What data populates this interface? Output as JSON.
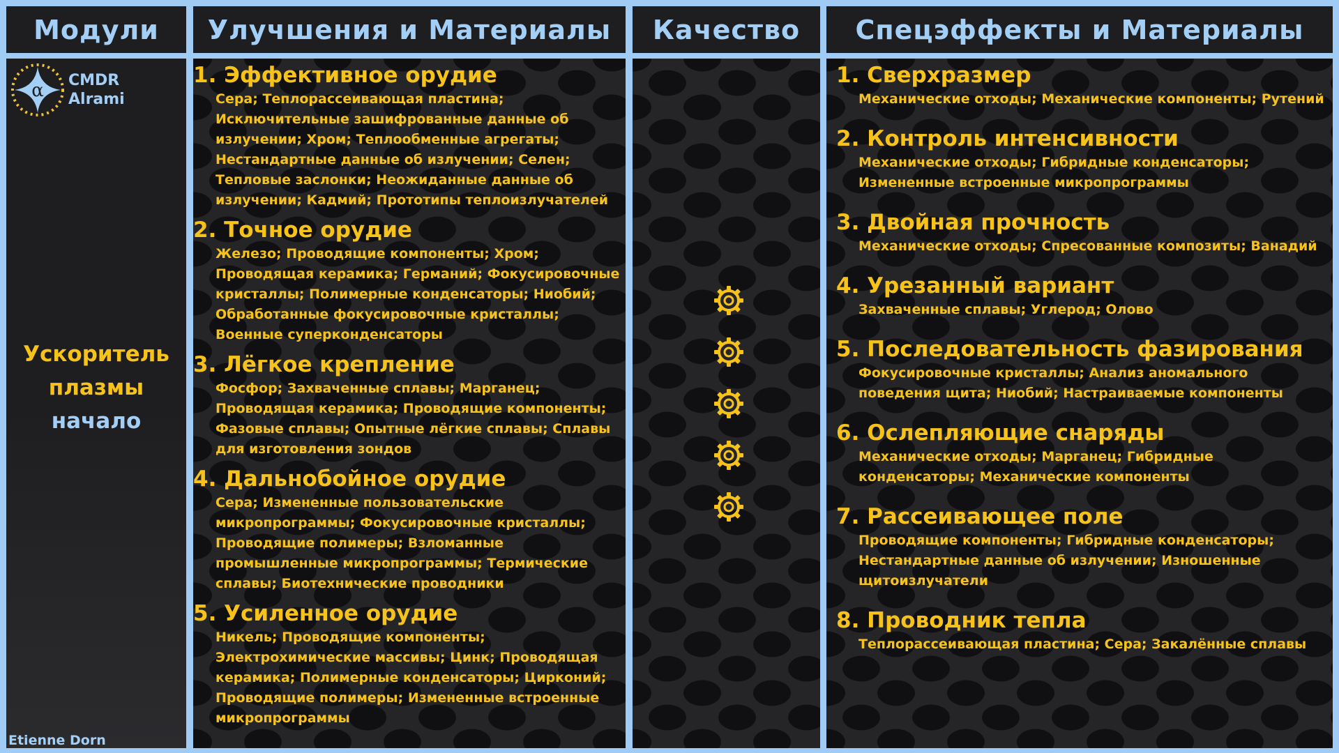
{
  "headers": {
    "modules": "Модули",
    "upgrades": "Улучшения и Материалы",
    "quality": "Качество",
    "effects": "Спецэффекты и Материалы"
  },
  "logo": {
    "line1": "CMDR",
    "line2": "Alrami",
    "symbol": "α"
  },
  "module": {
    "line1": "Ускоритель",
    "line2": "плазмы",
    "line3": "начало"
  },
  "author": "Etienne Dorn",
  "quality_grades": 5,
  "colors": {
    "accent": "#f7c31b",
    "header": "#a3cff7",
    "border": "#9fcbf4",
    "panel": "#1e1e20"
  },
  "upgrades": [
    {
      "title": "1. Эффективное орудие",
      "materials": "Сера; Теплорассеивающая пластина; Исключительные зашифрованные данные об излучении; Хром; Теплообменные агрегаты; Нестандартные данные об излучении; Селен; Тепловые заслонки; Неожиданные данные об излучении; Кадмий; Прототипы теплоизлучателей"
    },
    {
      "title": "2. Точное орудие",
      "materials": "Железо; Проводящие компоненты; Хром; Проводящая керамика; Германий; Фокусировочные кристаллы; Полимерные конденсаторы; Ниобий; Обработанные фокусировочные кристаллы; Военные суперконденсаторы"
    },
    {
      "title": "3. Лёгкое крепление",
      "materials": "Фосфор; Захваченные сплавы; Марганец; Проводящая керамика; Проводящие компоненты; Фазовые сплавы; Опытные лёгкие сплавы; Сплавы для изготовления зондов"
    },
    {
      "title": "4. Дальнобойное орудие",
      "materials": "Сера; Измененные пользовательские микропрограммы; Фокусировочные кристаллы; Проводящие полимеры; Взломанные промышленные микропрограммы; Термические сплавы; Биотехнические проводники"
    },
    {
      "title": "5. Усиленное орудие",
      "materials": "Никель; Проводящие компоненты; Электрохимические массивы; Цинк; Проводящая керамика; Полимерные конденсаторы; Цирконий; Проводящие полимеры; Измененные встроенные микропрограммы"
    }
  ],
  "effects": [
    {
      "title": "1. Сверхразмер",
      "materials": "Механические отходы; Механические компоненты; Рутений"
    },
    {
      "title": "2. Контроль интенсивности",
      "materials": "Механические отходы; Гибридные конденсаторы; Измененные встроенные микропрограммы"
    },
    {
      "title": "3. Двойная прочность",
      "materials": "Механические отходы; Спресованные композиты; Ванадий"
    },
    {
      "title": "4. Урезанный вариант",
      "materials": "Захваченные сплавы; Углерод; Олово"
    },
    {
      "title": "5. Последовательность фазирования",
      "materials": "Фокусировочные кристаллы; Анализ аномального поведения щита; Ниобий; Настраиваемые компоненты"
    },
    {
      "title": "6. Ослепляющие снаряды",
      "materials": "Механические отходы; Марганец; Гибридные конденсаторы; Механические компоненты"
    },
    {
      "title": "7. Рассеивающее поле",
      "materials": "Проводящие компоненты; Гибридные конденсаторы; Нестандартные данные об излучении; Изношенные щитоизлучатели"
    },
    {
      "title": "8. Проводник тепла",
      "materials": "Теплорассеивающая пластина; Сера; Закалённые сплавы"
    }
  ]
}
